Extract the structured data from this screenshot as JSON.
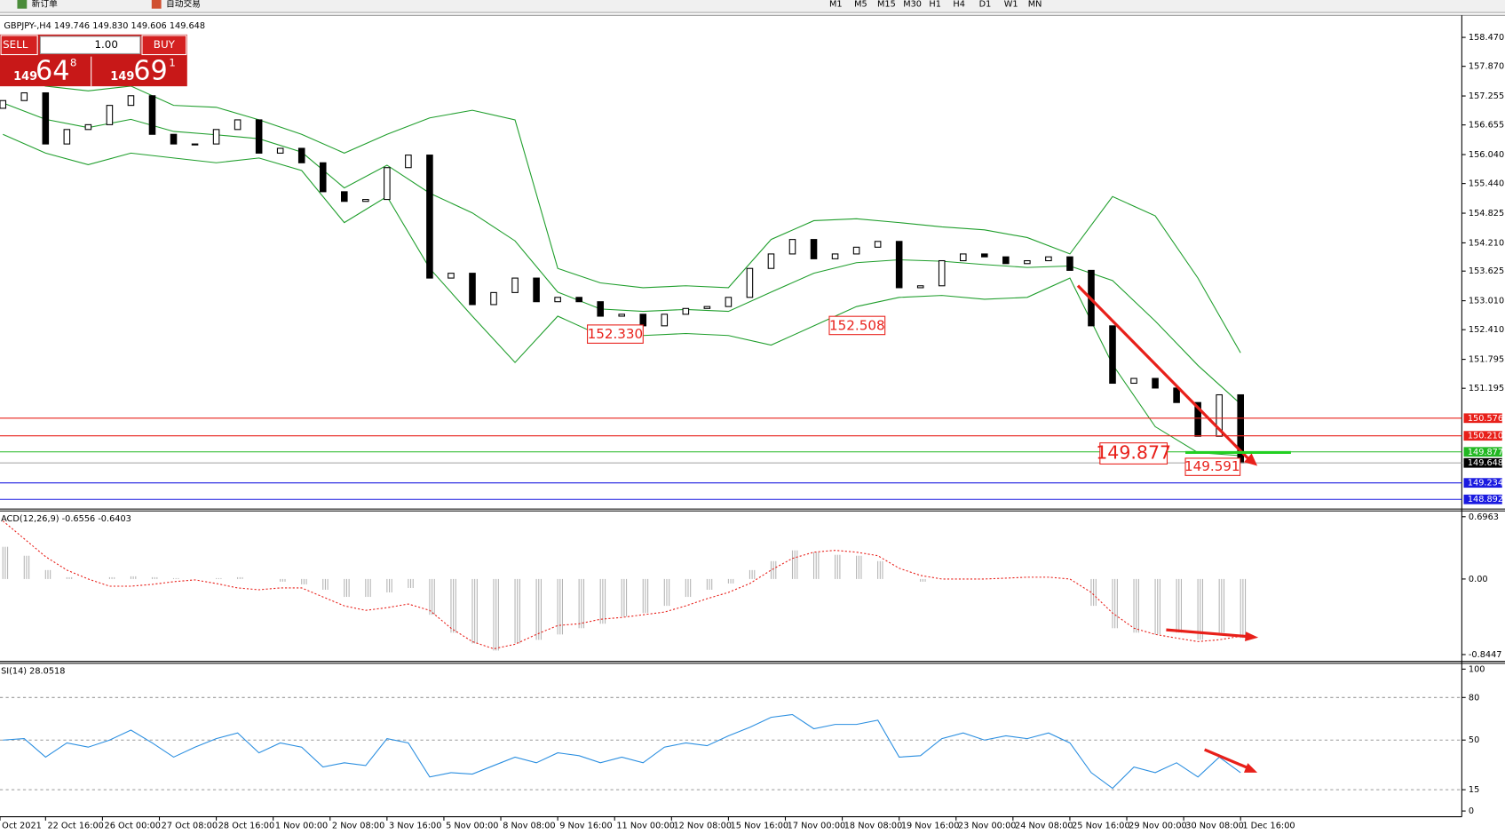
{
  "toolbar": {
    "new_order": "新订单",
    "auto_trading": "自动交易",
    "timeframes": [
      "M1",
      "M5",
      "M15",
      "M30",
      "H1",
      "H4",
      "D1",
      "W1",
      "MN"
    ]
  },
  "chart_header": "GBPJPY-,H4 149.746 149.830 149.606 149.648",
  "trade_panel": {
    "sell": "SELL",
    "lots": "1.00",
    "buy": "BUY",
    "bid": {
      "big": "149",
      "mid": "64",
      "sup": "8"
    },
    "ask": {
      "big": "149",
      "mid": "69",
      "sup": "1"
    }
  },
  "annotations": [
    "152.330",
    "152.508",
    "149.877",
    "149.591"
  ],
  "chart_data": [
    {
      "type": "candlestick",
      "xlim": [
        -0.405,
        205.1
      ],
      "ylim": [
        148.712,
        158.887
      ],
      "yticks": [
        {
          "value": 158.47,
          "label": "158.470"
        },
        {
          "value": 157.87,
          "label": "157.870"
        },
        157.255,
        156.655,
        {
          "value": 156.04,
          "label": "156.040"
        },
        {
          "value": 155.44,
          "label": "155.440"
        },
        154.825,
        {
          "value": 154.21,
          "label": "154.210"
        },
        153.625,
        {
          "value": 153.01,
          "label": "153.010"
        },
        {
          "value": 152.41,
          "label": "152.410"
        },
        151.795,
        151.195
      ],
      "x": [
        0,
        3,
        6,
        9,
        12,
        15,
        18,
        21,
        24,
        27,
        30,
        33,
        36,
        39,
        42,
        45,
        48,
        51,
        54,
        57,
        60,
        63,
        66,
        69,
        72,
        75,
        78,
        81,
        84,
        87,
        90,
        93,
        96,
        99,
        102,
        105,
        108,
        111,
        114,
        117,
        120,
        123,
        126,
        129,
        132,
        135,
        138,
        141,
        144,
        147,
        150,
        153,
        156,
        159,
        162,
        165,
        168,
        171,
        174
      ],
      "open": [
        157.0,
        157.16,
        157.32,
        156.26,
        156.56,
        156.66,
        157.06,
        157.26,
        156.46,
        156.26,
        156.26,
        156.56,
        156.76,
        156.07,
        156.17,
        155.87,
        155.27,
        155.07,
        155.11,
        155.77,
        156.03,
        153.48,
        153.58,
        152.93,
        153.18,
        153.48,
        152.99,
        153.08,
        152.99,
        152.69,
        152.73,
        152.49,
        152.73,
        152.85,
        152.89,
        153.08,
        153.68,
        153.98,
        154.28,
        153.88,
        153.98,
        154.12,
        154.24,
        153.28,
        153.32,
        153.84,
        153.98,
        153.92,
        153.78,
        153.84,
        153.92,
        153.64,
        152.49,
        151.3,
        151.4,
        151.2,
        150.9,
        150.2,
        151.06
      ],
      "close": [
        157.16,
        157.32,
        156.26,
        156.56,
        156.66,
        157.06,
        157.26,
        156.46,
        156.26,
        156.26,
        156.56,
        156.76,
        156.07,
        156.17,
        155.87,
        155.27,
        155.07,
        155.11,
        155.77,
        156.03,
        153.48,
        153.58,
        152.93,
        153.18,
        153.48,
        152.99,
        153.08,
        152.99,
        152.69,
        152.73,
        152.49,
        152.73,
        152.85,
        152.89,
        153.08,
        153.68,
        153.98,
        154.28,
        153.88,
        153.98,
        154.12,
        154.24,
        153.28,
        153.32,
        153.84,
        153.98,
        153.92,
        153.78,
        153.84,
        153.92,
        153.64,
        152.49,
        151.3,
        151.4,
        151.2,
        150.9,
        150.2,
        151.06,
        149.648
      ],
      "bands": {
        "color": "#1f9e2c",
        "x": [
          0,
          6,
          12,
          18,
          24,
          30,
          36,
          42,
          48,
          54,
          60,
          66,
          72,
          78,
          84,
          90,
          96,
          102,
          108,
          114,
          120,
          126,
          132,
          138,
          144,
          150,
          156,
          162,
          168,
          174
        ],
        "upper": [
          157.75,
          157.46,
          157.36,
          157.46,
          157.06,
          157.02,
          156.76,
          156.46,
          156.07,
          156.46,
          156.8,
          156.96,
          156.76,
          153.68,
          153.38,
          153.28,
          153.32,
          153.28,
          154.28,
          154.67,
          154.71,
          154.63,
          154.54,
          154.48,
          154.32,
          153.98,
          155.17,
          154.77,
          153.48,
          151.93
        ],
        "middle": [
          157.11,
          156.77,
          156.6,
          156.77,
          156.52,
          156.45,
          156.37,
          156.09,
          155.35,
          155.82,
          155.24,
          154.83,
          154.25,
          153.19,
          152.84,
          152.79,
          152.83,
          152.79,
          153.19,
          153.58,
          153.8,
          153.86,
          153.83,
          153.76,
          153.7,
          153.73,
          153.43,
          152.59,
          151.67,
          150.87
        ],
        "lower": [
          156.46,
          156.07,
          155.83,
          156.07,
          155.97,
          155.87,
          155.97,
          155.71,
          154.63,
          155.17,
          153.68,
          152.69,
          151.73,
          152.69,
          152.29,
          152.29,
          152.33,
          152.29,
          152.09,
          152.49,
          152.89,
          153.08,
          153.12,
          153.04,
          153.08,
          153.48,
          151.69,
          150.4,
          149.86,
          149.8
        ]
      },
      "levels": [
        {
          "value": 150.576,
          "color": "#e8201a"
        },
        {
          "value": 150.21,
          "label": "150.210",
          "color": "#e8201a"
        },
        {
          "value": 149.877,
          "color": "#22b822"
        },
        {
          "value": 149.648,
          "color": "#000000"
        },
        {
          "value": 149.234,
          "color": "#1a1ae0"
        },
        {
          "value": 148.892,
          "color": "#1a1ae0"
        }
      ]
    },
    {
      "type": "macd",
      "title": "ACD(12,26,9) -0.6556 -0.6403",
      "xlim": [
        -0.405,
        205.1
      ],
      "ylim": [
        -0.911,
        0.761
      ],
      "yticks": [
        0.6963,
        {
          "value": 0,
          "label": "0.00"
        },
        -0.8447
      ],
      "x": [
        0,
        3,
        6,
        9,
        12,
        15,
        18,
        21,
        24,
        27,
        30,
        33,
        36,
        39,
        42,
        45,
        48,
        51,
        54,
        57,
        60,
        63,
        66,
        69,
        72,
        75,
        78,
        81,
        84,
        87,
        90,
        93,
        96,
        99,
        102,
        105,
        108,
        111,
        114,
        117,
        120,
        123,
        126,
        129,
        132,
        135,
        138,
        141,
        144,
        147,
        150,
        153,
        156,
        159,
        162,
        165,
        168,
        171,
        174
      ],
      "histogram": {
        "color": "#b4b4b4",
        "values": [
          0.36,
          0.26,
          0.1,
          0.02,
          0.0,
          0.02,
          0.03,
          0.02,
          0.01,
          0.0,
          0.01,
          0.02,
          0.0,
          -0.03,
          -0.06,
          -0.12,
          -0.2,
          -0.2,
          -0.15,
          -0.1,
          -0.4,
          -0.6,
          -0.72,
          -0.8,
          -0.72,
          -0.68,
          -0.62,
          -0.55,
          -0.5,
          -0.42,
          -0.38,
          -0.3,
          -0.2,
          -0.12,
          -0.05,
          0.1,
          0.2,
          0.32,
          0.3,
          0.27,
          0.26,
          0.2,
          0.0,
          -0.03,
          0.0,
          0.0,
          0.0,
          0.0,
          0.0,
          0.0,
          0.0,
          -0.3,
          -0.55,
          -0.6,
          -0.62,
          -0.6,
          -0.68,
          -0.6,
          -0.66
        ]
      },
      "signal": {
        "color": "#e8201a",
        "values": [
          0.65,
          0.45,
          0.25,
          0.1,
          0.0,
          -0.08,
          -0.08,
          -0.06,
          -0.03,
          -0.01,
          -0.05,
          -0.1,
          -0.12,
          -0.1,
          -0.1,
          -0.2,
          -0.3,
          -0.35,
          -0.32,
          -0.28,
          -0.35,
          -0.55,
          -0.7,
          -0.78,
          -0.73,
          -0.62,
          -0.52,
          -0.5,
          -0.45,
          -0.43,
          -0.4,
          -0.37,
          -0.3,
          -0.22,
          -0.15,
          -0.05,
          0.1,
          0.23,
          0.3,
          0.32,
          0.3,
          0.26,
          0.12,
          0.04,
          0.0,
          0.0,
          0.0,
          0.01,
          0.02,
          0.02,
          0.0,
          -0.15,
          -0.38,
          -0.55,
          -0.62,
          -0.66,
          -0.7,
          -0.68,
          -0.64
        ]
      }
    },
    {
      "type": "rsi",
      "title": "SI(14) 28.0518",
      "xlim": [
        -0.405,
        205.1
      ],
      "ylim": [
        -4.05,
        104.05
      ],
      "yticks": [
        100,
        80,
        50,
        15,
        0
      ],
      "levels": [
        80,
        50,
        15
      ],
      "color": "#2a8ee0",
      "x": [
        0,
        3,
        6,
        9,
        12,
        15,
        18,
        21,
        24,
        27,
        30,
        33,
        36,
        39,
        42,
        45,
        48,
        51,
        54,
        57,
        60,
        63,
        66,
        69,
        72,
        75,
        78,
        81,
        84,
        87,
        90,
        93,
        96,
        99,
        102,
        105,
        108,
        111,
        114,
        117,
        120,
        123,
        126,
        129,
        132,
        135,
        138,
        141,
        144,
        147,
        150,
        153,
        156,
        159,
        162,
        165,
        168,
        171,
        174
      ],
      "values": [
        50,
        51,
        38,
        48,
        45,
        50,
        57,
        48,
        38,
        45,
        51,
        55,
        41,
        48,
        45,
        31,
        34,
        32,
        51,
        48,
        24,
        27,
        26,
        32,
        38,
        34,
        41,
        39,
        34,
        38,
        34,
        45,
        48,
        46,
        53,
        59,
        66,
        68,
        58,
        61,
        61,
        64,
        38,
        39,
        51,
        55,
        50,
        53,
        51,
        55,
        48,
        27,
        16,
        31,
        27,
        34,
        24,
        38,
        27
      ],
      "xticks": [
        {
          "value": -0.405,
          "label": "Oct 2021"
        },
        {
          "value": 6,
          "label": "22 Oct 16:00"
        },
        {
          "value": 14,
          "label": "26 Oct 00:00"
        },
        {
          "value": 22,
          "label": "27 Oct 08:00"
        },
        {
          "value": 30,
          "label": "28 Oct 16:00"
        },
        {
          "value": 38,
          "label": "1 Nov 00:00"
        },
        {
          "value": 46,
          "label": "2 Nov 08:00"
        },
        {
          "value": 54,
          "label": "3 Nov 16:00"
        },
        {
          "value": 62,
          "label": "5 Nov 00:00"
        },
        {
          "value": 70,
          "label": "8 Nov 08:00"
        },
        {
          "value": 78,
          "label": "9 Nov 16:00"
        },
        {
          "value": 86,
          "label": "11 Nov 00:00"
        },
        {
          "value": 94,
          "label": "12 Nov 08:00"
        },
        {
          "value": 102,
          "label": "15 Nov 16:00"
        },
        {
          "value": 110,
          "label": "17 Nov 00:00"
        },
        {
          "value": 118,
          "label": "18 Nov 08:00"
        },
        {
          "value": 126,
          "label": "19 Nov 16:00"
        },
        {
          "value": 134,
          "label": "23 Nov 00:00"
        },
        {
          "value": 142,
          "label": "24 Nov 08:00"
        },
        {
          "value": 150,
          "label": "25 Nov 16:00"
        },
        {
          "value": 158,
          "label": "29 Nov 00:00"
        },
        {
          "value": 166,
          "label": "30 Nov 08:00"
        },
        {
          "value": 174,
          "label": "1 Dec 16:00"
        }
      ]
    }
  ]
}
